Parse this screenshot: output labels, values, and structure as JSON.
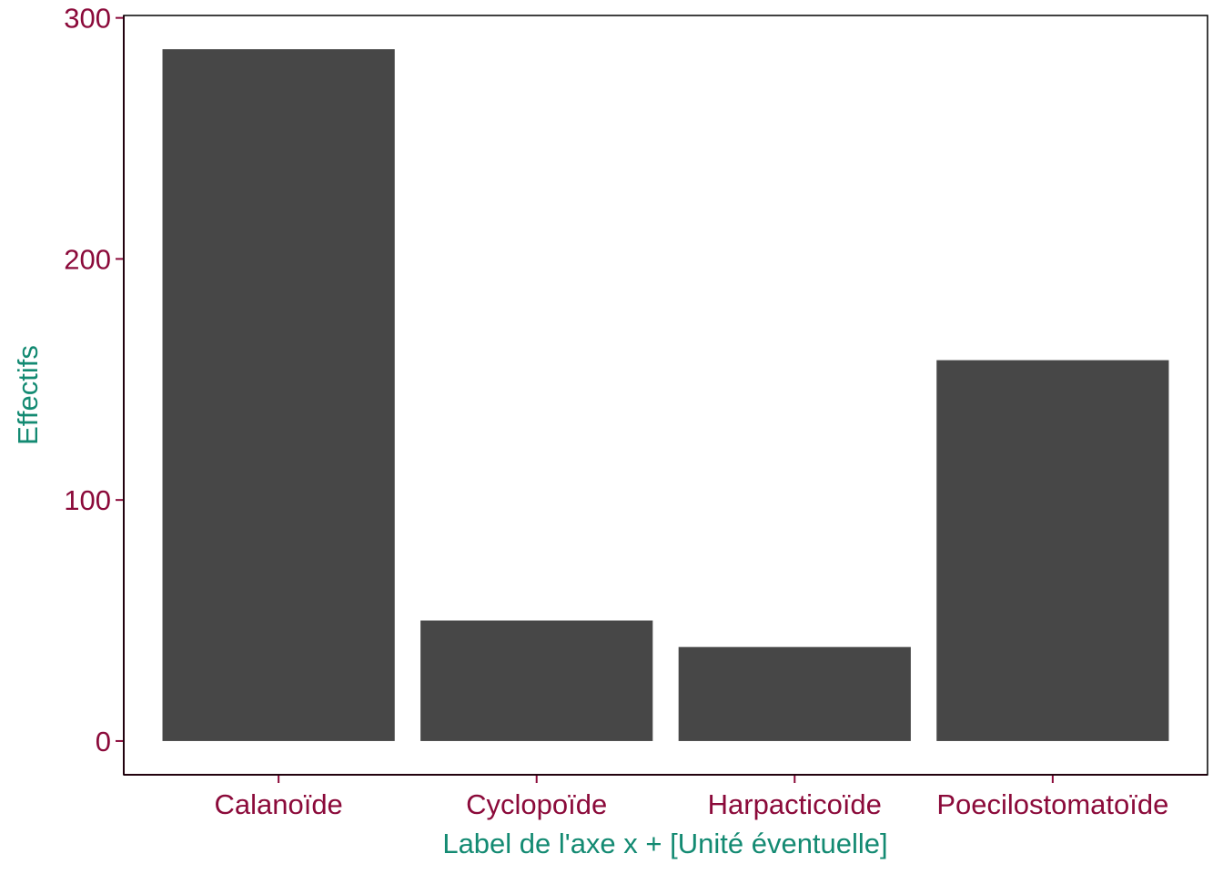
{
  "chart_data": {
    "type": "bar",
    "title": "",
    "xlabel": "Label de l'axe x  + [Unité éventuelle]",
    "ylabel": "Effectifs",
    "categories": [
      "Calanoïde",
      "Cyclopoïde",
      "Harpacticoïde",
      "Poecilostomatoïde"
    ],
    "values": [
      287,
      50,
      39,
      158
    ],
    "ylim": [
      -14,
      301
    ],
    "yticks": [
      0,
      100,
      200,
      300
    ],
    "grid": false,
    "legend": "none"
  },
  "colors": {
    "bar": "#474747",
    "tick_label": "#8b0a3a",
    "axis_line": "#8b0a3a",
    "axis_title": "#138a72",
    "panel_border": "#000000",
    "background": "#ffffff"
  }
}
